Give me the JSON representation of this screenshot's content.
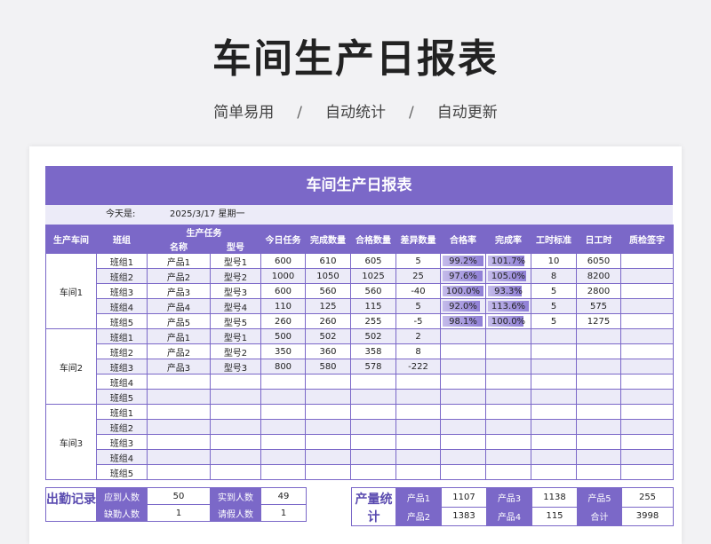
{
  "hero": {
    "title": "车间生产日报表",
    "tags": [
      "简单易用",
      "自动统计",
      "自动更新"
    ],
    "sep": "/"
  },
  "sheet": {
    "title": "车间生产日报表",
    "today_label": "今天是:",
    "today_value": "2025/3/17  星期一"
  },
  "headers": {
    "workshop": "生产车间",
    "team": "班组",
    "task_group": "生产任务",
    "name": "名称",
    "model": "型号",
    "today_task": "今日任务",
    "done_qty": "完成数量",
    "pass_qty": "合格数量",
    "diff_qty": "差异数量",
    "pass_rate": "合格率",
    "done_rate": "完成率",
    "std_hours": "工时标准",
    "day_hours": "日工时",
    "qc_sign": "质检签字"
  },
  "colors": {
    "accent": "#7b68c8",
    "row_alt": "#ecebf8"
  },
  "workshops": [
    {
      "name": "车间1",
      "rows": [
        {
          "team": "班组1",
          "name": "产品1",
          "model": "型号1",
          "task": "600",
          "done": "610",
          "pass": "605",
          "diff": "5",
          "pass_rate": "99.2%",
          "pass_rate_level": 0.992,
          "done_rate": "101.7%",
          "done_rate_level": 1.017,
          "std": "10",
          "hours": "6050",
          "sign": ""
        },
        {
          "team": "班组2",
          "name": "产品2",
          "model": "型号2",
          "task": "1000",
          "done": "1050",
          "pass": "1025",
          "diff": "25",
          "pass_rate": "97.6%",
          "pass_rate_level": 0.976,
          "done_rate": "105.0%",
          "done_rate_level": 1.05,
          "std": "8",
          "hours": "8200",
          "sign": ""
        },
        {
          "team": "班组3",
          "name": "产品3",
          "model": "型号3",
          "task": "600",
          "done": "560",
          "pass": "560",
          "diff": "-40",
          "pass_rate": "100.0%",
          "pass_rate_level": 1.0,
          "done_rate": "93.3%",
          "done_rate_level": 0.933,
          "std": "5",
          "hours": "2800",
          "sign": ""
        },
        {
          "team": "班组4",
          "name": "产品4",
          "model": "型号4",
          "task": "110",
          "done": "125",
          "pass": "115",
          "diff": "5",
          "pass_rate": "92.0%",
          "pass_rate_level": 0.92,
          "done_rate": "113.6%",
          "done_rate_level": 1.136,
          "std": "5",
          "hours": "575",
          "sign": ""
        },
        {
          "team": "班组5",
          "name": "产品5",
          "model": "型号5",
          "task": "260",
          "done": "260",
          "pass": "255",
          "diff": "-5",
          "pass_rate": "98.1%",
          "pass_rate_level": 0.981,
          "done_rate": "100.0%",
          "done_rate_level": 1.0,
          "std": "5",
          "hours": "1275",
          "sign": ""
        }
      ]
    },
    {
      "name": "车间2",
      "rows": [
        {
          "team": "班组1",
          "name": "产品1",
          "model": "型号1",
          "task": "500",
          "done": "502",
          "pass": "502",
          "diff": "2",
          "pass_rate": "",
          "pass_rate_level": null,
          "done_rate": "",
          "done_rate_level": null,
          "std": "",
          "hours": "",
          "sign": ""
        },
        {
          "team": "班组2",
          "name": "产品2",
          "model": "型号2",
          "task": "350",
          "done": "360",
          "pass": "358",
          "diff": "8",
          "pass_rate": "",
          "pass_rate_level": null,
          "done_rate": "",
          "done_rate_level": null,
          "std": "",
          "hours": "",
          "sign": ""
        },
        {
          "team": "班组3",
          "name": "产品3",
          "model": "型号3",
          "task": "800",
          "done": "580",
          "pass": "578",
          "diff": "-222",
          "pass_rate": "",
          "pass_rate_level": null,
          "done_rate": "",
          "done_rate_level": null,
          "std": "",
          "hours": "",
          "sign": ""
        },
        {
          "team": "班组4",
          "name": "",
          "model": "",
          "task": "",
          "done": "",
          "pass": "",
          "diff": "",
          "pass_rate": "",
          "pass_rate_level": null,
          "done_rate": "",
          "done_rate_level": null,
          "std": "",
          "hours": "",
          "sign": ""
        },
        {
          "team": "班组5",
          "name": "",
          "model": "",
          "task": "",
          "done": "",
          "pass": "",
          "diff": "",
          "pass_rate": "",
          "pass_rate_level": null,
          "done_rate": "",
          "done_rate_level": null,
          "std": "",
          "hours": "",
          "sign": ""
        }
      ]
    },
    {
      "name": "车间3",
      "rows": [
        {
          "team": "班组1",
          "name": "",
          "model": "",
          "task": "",
          "done": "",
          "pass": "",
          "diff": "",
          "pass_rate": "",
          "pass_rate_level": null,
          "done_rate": "",
          "done_rate_level": null,
          "std": "",
          "hours": "",
          "sign": ""
        },
        {
          "team": "班组2",
          "name": "",
          "model": "",
          "task": "",
          "done": "",
          "pass": "",
          "diff": "",
          "pass_rate": "",
          "pass_rate_level": null,
          "done_rate": "",
          "done_rate_level": null,
          "std": "",
          "hours": "",
          "sign": ""
        },
        {
          "team": "班组3",
          "name": "",
          "model": "",
          "task": "",
          "done": "",
          "pass": "",
          "diff": "",
          "pass_rate": "",
          "pass_rate_level": null,
          "done_rate": "",
          "done_rate_level": null,
          "std": "",
          "hours": "",
          "sign": ""
        },
        {
          "team": "班组4",
          "name": "",
          "model": "",
          "task": "",
          "done": "",
          "pass": "",
          "diff": "",
          "pass_rate": "",
          "pass_rate_level": null,
          "done_rate": "",
          "done_rate_level": null,
          "std": "",
          "hours": "",
          "sign": ""
        },
        {
          "team": "班组5",
          "name": "",
          "model": "",
          "task": "",
          "done": "",
          "pass": "",
          "diff": "",
          "pass_rate": "",
          "pass_rate_level": null,
          "done_rate": "",
          "done_rate_level": null,
          "std": "",
          "hours": "",
          "sign": ""
        }
      ]
    }
  ],
  "attendance": {
    "title": "出勤记录",
    "rows": [
      [
        {
          "label": "应到人数",
          "value": "50"
        },
        {
          "label": "实到人数",
          "value": "49"
        }
      ],
      [
        {
          "label": "缺勤人数",
          "value": "1"
        },
        {
          "label": "请假人数",
          "value": "1"
        }
      ]
    ]
  },
  "output": {
    "title": "产量统计",
    "rows": [
      [
        {
          "label": "产品1",
          "value": "1107"
        },
        {
          "label": "产品3",
          "value": "1138"
        },
        {
          "label": "产品5",
          "value": "255"
        }
      ],
      [
        {
          "label": "产品2",
          "value": "1383"
        },
        {
          "label": "产品4",
          "value": "115"
        },
        {
          "label": "合计",
          "value": "3998"
        }
      ]
    ]
  }
}
